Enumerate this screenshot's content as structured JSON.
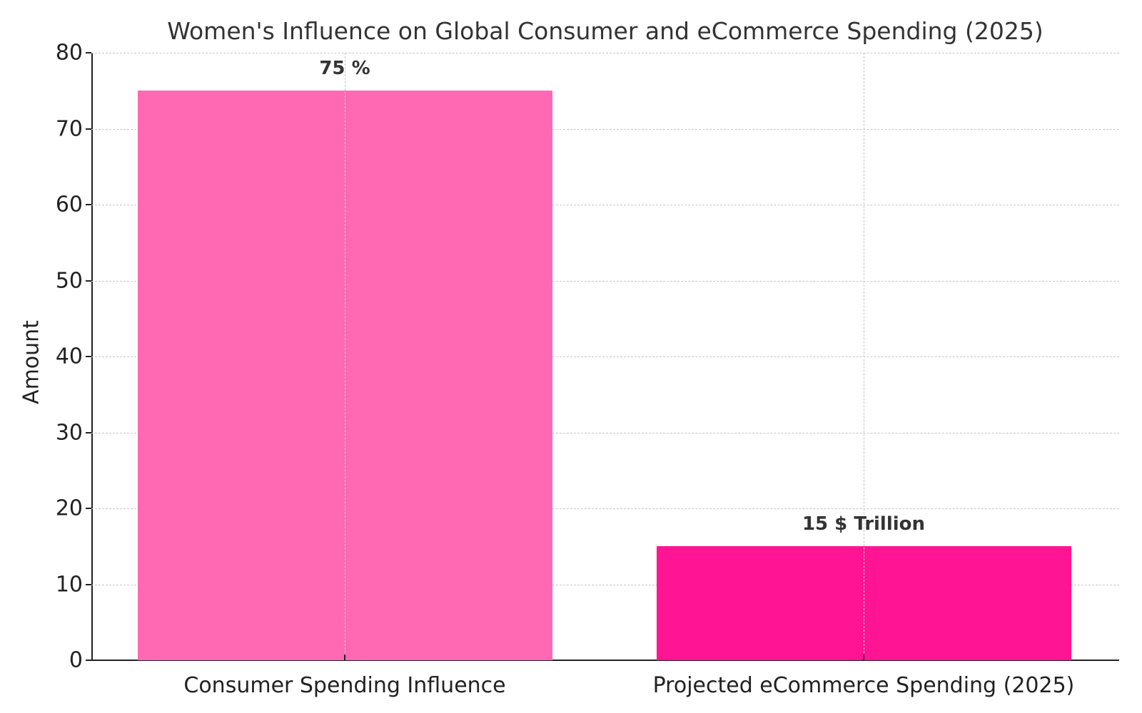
{
  "chart_data": {
    "type": "bar",
    "title": "Women's Influence on Global Consumer and eCommerce Spending (2025)",
    "xlabel": "",
    "ylabel": "Amount",
    "ylim": [
      0,
      80
    ],
    "yticks": [
      0,
      10,
      20,
      30,
      40,
      50,
      60,
      70,
      80
    ],
    "grid": true,
    "categories": [
      "Consumer Spending Influence",
      "Projected eCommerce Spending (2025)"
    ],
    "values": [
      75,
      15
    ],
    "bar_labels": [
      "75 %",
      "15 $ Trillion"
    ],
    "colors": [
      "#ff69b4",
      "#ff1493"
    ]
  }
}
